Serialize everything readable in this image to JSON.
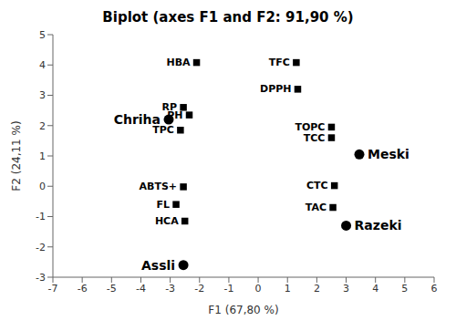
{
  "chart_data": {
    "type": "scatter",
    "title": "Biplot (axes F1 and F2: 91,90 %)",
    "x_label": "F1 (67,80 %)",
    "y_label": "F2 (24,11 %)",
    "xlim": [
      -7,
      6
    ],
    "ylim": [
      -3,
      5
    ],
    "xticks": [
      -7,
      -6,
      -5,
      -4,
      -3,
      -2,
      -1,
      0,
      1,
      2,
      3,
      4,
      5,
      6
    ],
    "yticks": [
      -3,
      -2,
      -1,
      0,
      1,
      2,
      3,
      4,
      5
    ],
    "grid": false,
    "series": [
      {
        "marker": "square",
        "color": "#000000",
        "points": [
          {
            "x": -2.1,
            "y": 4.08,
            "label": "HBA"
          },
          {
            "x": 1.3,
            "y": 4.08,
            "label": "TFC"
          },
          {
            "x": 1.35,
            "y": 3.2,
            "label": "DPPH"
          },
          {
            "x": -2.55,
            "y": 2.6,
            "label": "RP"
          },
          {
            "x": -2.35,
            "y": 2.35,
            "label": "PH"
          },
          {
            "x": -2.65,
            "y": 1.85,
            "label": "TPC"
          },
          {
            "x": 2.5,
            "y": 1.95,
            "label": "TOPC"
          },
          {
            "x": 2.5,
            "y": 1.6,
            "label": "TCC"
          },
          {
            "x": 2.6,
            "y": 0.02,
            "label": "CTC"
          },
          {
            "x": -2.55,
            "y": -0.02,
            "label": "ABTS+"
          },
          {
            "x": -2.8,
            "y": -0.6,
            "label": "FL"
          },
          {
            "x": -2.5,
            "y": -1.15,
            "label": "HCA"
          },
          {
            "x": 2.55,
            "y": -0.7,
            "label": "TAC"
          }
        ]
      },
      {
        "marker": "circle",
        "color": "#000000",
        "points": [
          {
            "x": -3.05,
            "y": 2.2,
            "label": "Chriha"
          },
          {
            "x": 3.45,
            "y": 1.05,
            "label": "Meski"
          },
          {
            "x": 3.0,
            "y": -1.3,
            "label": "Razeki"
          },
          {
            "x": -2.55,
            "y": -2.6,
            "label": "Assli"
          }
        ]
      }
    ]
  }
}
